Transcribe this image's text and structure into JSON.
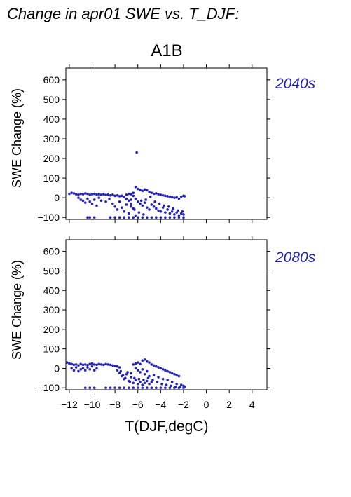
{
  "figure": {
    "title": "Change in apr01 SWE vs. T_DJF:",
    "scenario": "A1B",
    "ylabel": "SWE Change (%)",
    "xlabel": "T(DJF,degC)",
    "marker_color": "#2424b4",
    "period_color": "#2424b4"
  },
  "chart_data": [
    {
      "type": "scatter",
      "panel": "2040s",
      "title": "",
      "xlabel": "T(DJF,degC)",
      "ylabel": "SWE Change (%)",
      "xlim": [
        -12.3,
        5.3
      ],
      "ylim": [
        -110,
        660
      ],
      "yticks": [
        -100,
        0,
        100,
        200,
        300,
        400,
        500,
        600
      ],
      "xticks": [
        -12,
        -10,
        -8,
        -6,
        -4,
        -2,
        0,
        2,
        4
      ],
      "grid": false,
      "series": [
        {
          "points": [
            [
              -12.0,
              20
            ],
            [
              -11.8,
              25
            ],
            [
              -11.6,
              22
            ],
            [
              -11.4,
              18
            ],
            [
              -11.2,
              15
            ],
            [
              -11.0,
              20
            ],
            [
              -10.8,
              18
            ],
            [
              -10.6,
              22
            ],
            [
              -10.4,
              20
            ],
            [
              -10.2,
              15
            ],
            [
              -10.0,
              18
            ],
            [
              -9.8,
              20
            ],
            [
              -9.6,
              16
            ],
            [
              -9.4,
              18
            ],
            [
              -9.2,
              15
            ],
            [
              -9.0,
              18
            ],
            [
              -8.8,
              14
            ],
            [
              -8.6,
              16
            ],
            [
              -8.4,
              12
            ],
            [
              -8.2,
              15
            ],
            [
              -8.0,
              10
            ],
            [
              -7.8,
              12
            ],
            [
              -7.6,
              8
            ],
            [
              -7.4,
              10
            ],
            [
              -11.2,
              0
            ],
            [
              -11.0,
              -10
            ],
            [
              -10.8,
              -15
            ],
            [
              -10.6,
              -25
            ],
            [
              -10.4,
              -5
            ],
            [
              -10.2,
              -20
            ],
            [
              -10.0,
              -30
            ],
            [
              -9.8,
              -10
            ],
            [
              -9.6,
              -40
            ],
            [
              -9.4,
              0
            ],
            [
              -9.2,
              -15
            ],
            [
              -8.8,
              -20
            ],
            [
              -8.5,
              -5
            ],
            [
              -8.2,
              -30
            ],
            [
              -8.0,
              -45
            ],
            [
              -7.8,
              -60
            ],
            [
              -7.6,
              -20
            ],
            [
              -7.4,
              -50
            ],
            [
              -7.2,
              -70
            ],
            [
              -7.0,
              -35
            ],
            [
              -6.8,
              -80
            ],
            [
              -6.6,
              -10
            ],
            [
              -6.4,
              -55
            ],
            [
              -6.2,
              -90
            ],
            [
              -10.4,
              -100
            ],
            [
              -10.2,
              -100
            ],
            [
              -9.8,
              -100
            ],
            [
              -8.4,
              -100
            ],
            [
              -8.0,
              -100
            ],
            [
              -7.6,
              -100
            ],
            [
              -7.2,
              -100
            ],
            [
              -6.8,
              -100
            ],
            [
              -6.4,
              -100
            ],
            [
              -6.0,
              -100
            ],
            [
              -5.6,
              -100
            ],
            [
              -5.2,
              -100
            ],
            [
              -4.8,
              -100
            ],
            [
              -4.4,
              -100
            ],
            [
              -4.0,
              -100
            ],
            [
              -3.6,
              -100
            ],
            [
              -3.2,
              -100
            ],
            [
              -2.8,
              -100
            ],
            [
              -2.4,
              -100
            ],
            [
              -2.0,
              -100
            ],
            [
              -6.1,
              230
            ],
            [
              -6.2,
              55
            ],
            [
              -6.0,
              45
            ],
            [
              -5.8,
              40
            ],
            [
              -5.6,
              35
            ],
            [
              -5.4,
              42
            ],
            [
              -5.2,
              38
            ],
            [
              -5.0,
              30
            ],
            [
              -4.8,
              25
            ],
            [
              -4.6,
              20
            ],
            [
              -4.4,
              22
            ],
            [
              -4.2,
              18
            ],
            [
              -4.0,
              15
            ],
            [
              -3.8,
              12
            ],
            [
              -3.6,
              10
            ],
            [
              -3.4,
              8
            ],
            [
              -3.2,
              5
            ],
            [
              -3.0,
              3
            ],
            [
              -2.8,
              0
            ],
            [
              -2.6,
              2
            ],
            [
              -2.4,
              -5
            ],
            [
              -2.2,
              5
            ],
            [
              -2.0,
              10
            ],
            [
              -1.9,
              8
            ],
            [
              -6.4,
              10
            ],
            [
              -6.2,
              -5
            ],
            [
              -6.0,
              -20
            ],
            [
              -5.8,
              -30
            ],
            [
              -5.6,
              -40
            ],
            [
              -5.4,
              -25
            ],
            [
              -5.2,
              -50
            ],
            [
              -5.0,
              -60
            ],
            [
              -4.8,
              -35
            ],
            [
              -4.6,
              -45
            ],
            [
              -4.4,
              -55
            ],
            [
              -4.2,
              -65
            ],
            [
              -4.0,
              -70
            ],
            [
              -3.8,
              -50
            ],
            [
              -3.6,
              -75
            ],
            [
              -3.4,
              -60
            ],
            [
              -3.2,
              -80
            ],
            [
              -3.0,
              -70
            ],
            [
              -2.8,
              -85
            ],
            [
              -2.6,
              -75
            ],
            [
              -2.4,
              -90
            ],
            [
              -2.2,
              -80
            ],
            [
              -2.0,
              -85
            ],
            [
              -6.6,
              -30
            ],
            [
              -6.3,
              -60
            ],
            [
              -5.9,
              -75
            ],
            [
              -5.5,
              -85
            ],
            [
              -5.7,
              -15
            ],
            [
              -5.3,
              -10
            ],
            [
              -4.9,
              5
            ],
            [
              -4.5,
              -20
            ],
            [
              -4.1,
              -30
            ],
            [
              -3.7,
              -40
            ],
            [
              -3.3,
              -45
            ],
            [
              -2.9,
              -55
            ],
            [
              -2.5,
              -65
            ],
            [
              -2.1,
              -70
            ],
            [
              -7.0,
              15
            ],
            [
              -6.8,
              20
            ],
            [
              -6.6,
              18
            ],
            [
              -6.4,
              25
            ],
            [
              -7.2,
              5
            ],
            [
              -7.0,
              -5
            ],
            [
              -6.8,
              -15
            ],
            [
              -6.6,
              -45
            ]
          ]
        }
      ]
    },
    {
      "type": "scatter",
      "panel": "2080s",
      "title": "",
      "xlabel": "T(DJF,degC)",
      "ylabel": "SWE Change (%)",
      "xlim": [
        -12.3,
        5.3
      ],
      "ylim": [
        -110,
        660
      ],
      "yticks": [
        -100,
        0,
        100,
        200,
        300,
        400,
        500,
        600
      ],
      "xticks": [
        -12,
        -10,
        -8,
        -6,
        -4,
        -2,
        0,
        2,
        4
      ],
      "grid": false,
      "series": [
        {
          "points": [
            [
              -12.2,
              30
            ],
            [
              -12.0,
              25
            ],
            [
              -11.8,
              22
            ],
            [
              -11.6,
              18
            ],
            [
              -11.4,
              20
            ],
            [
              -11.2,
              15
            ],
            [
              -11.0,
              22
            ],
            [
              -10.8,
              18
            ],
            [
              -10.6,
              20
            ],
            [
              -10.4,
              16
            ],
            [
              -10.2,
              22
            ],
            [
              -10.0,
              25
            ],
            [
              -9.8,
              20
            ],
            [
              -9.6,
              18
            ],
            [
              -9.4,
              22
            ],
            [
              -9.2,
              20
            ],
            [
              -9.0,
              18
            ],
            [
              -8.8,
              22
            ],
            [
              -8.6,
              20
            ],
            [
              -8.4,
              18
            ],
            [
              -8.2,
              15
            ],
            [
              -8.0,
              12
            ],
            [
              -7.8,
              10
            ],
            [
              -7.6,
              5
            ],
            [
              -11.8,
              0
            ],
            [
              -11.6,
              -10
            ],
            [
              -11.4,
              5
            ],
            [
              -11.2,
              -15
            ],
            [
              -11.0,
              -5
            ],
            [
              -10.8,
              0
            ],
            [
              -10.6,
              -10
            ],
            [
              -10.4,
              5
            ],
            [
              -10.2,
              -5
            ],
            [
              -10.0,
              10
            ],
            [
              -9.8,
              -10
            ],
            [
              -9.6,
              0
            ],
            [
              -7.8,
              -10
            ],
            [
              -7.6,
              -25
            ],
            [
              -7.4,
              -40
            ],
            [
              -7.2,
              -55
            ],
            [
              -7.0,
              -30
            ],
            [
              -6.8,
              -65
            ],
            [
              -6.6,
              -45
            ],
            [
              -6.4,
              -75
            ],
            [
              -6.2,
              -60
            ],
            [
              -6.0,
              -80
            ],
            [
              -5.8,
              -70
            ],
            [
              -5.6,
              -85
            ],
            [
              -5.4,
              -75
            ],
            [
              -5.2,
              -65
            ],
            [
              -5.0,
              -80
            ],
            [
              -4.8,
              -70
            ],
            [
              -7.5,
              -15
            ],
            [
              -7.3,
              -35
            ],
            [
              -7.1,
              -50
            ],
            [
              -6.9,
              -20
            ],
            [
              -6.7,
              -70
            ],
            [
              -10.6,
              -100
            ],
            [
              -10.2,
              -100
            ],
            [
              -9.8,
              -100
            ],
            [
              -8.8,
              -100
            ],
            [
              -8.4,
              -100
            ],
            [
              -8.0,
              -100
            ],
            [
              -7.6,
              -100
            ],
            [
              -7.2,
              -100
            ],
            [
              -6.8,
              -100
            ],
            [
              -6.4,
              -100
            ],
            [
              -6.0,
              -100
            ],
            [
              -5.6,
              -100
            ],
            [
              -5.2,
              -100
            ],
            [
              -4.8,
              -100
            ],
            [
              -4.4,
              -100
            ],
            [
              -4.0,
              -100
            ],
            [
              -3.6,
              -100
            ],
            [
              -3.2,
              -100
            ],
            [
              -2.8,
              -100
            ],
            [
              -2.4,
              -100
            ],
            [
              -2.0,
              -100
            ],
            [
              -1.9,
              -95
            ],
            [
              -6.4,
              20
            ],
            [
              -6.2,
              25
            ],
            [
              -6.0,
              30
            ],
            [
              -5.8,
              22
            ],
            [
              -5.6,
              40
            ],
            [
              -5.4,
              45
            ],
            [
              -5.2,
              35
            ],
            [
              -5.0,
              30
            ],
            [
              -4.8,
              20
            ],
            [
              -4.6,
              15
            ],
            [
              -4.4,
              10
            ],
            [
              -4.2,
              5
            ],
            [
              -4.0,
              0
            ],
            [
              -3.8,
              -5
            ],
            [
              -3.6,
              -10
            ],
            [
              -3.4,
              -15
            ],
            [
              -3.2,
              -20
            ],
            [
              -3.0,
              -25
            ],
            [
              -2.8,
              -30
            ],
            [
              -2.6,
              -35
            ],
            [
              -2.4,
              -40
            ],
            [
              -6.2,
              0
            ],
            [
              -6.0,
              -10
            ],
            [
              -5.8,
              -20
            ],
            [
              -5.6,
              -5
            ],
            [
              -5.4,
              -30
            ],
            [
              -5.2,
              -15
            ],
            [
              -5.0,
              -40
            ],
            [
              -4.6,
              -35
            ],
            [
              -4.2,
              -45
            ],
            [
              -3.8,
              -55
            ],
            [
              -3.4,
              -60
            ],
            [
              -3.0,
              -70
            ],
            [
              -2.6,
              -80
            ],
            [
              -2.2,
              -85
            ],
            [
              -2.0,
              -90
            ],
            [
              -6.6,
              -25
            ],
            [
              -6.3,
              -50
            ],
            [
              -5.9,
              -55
            ],
            [
              -5.5,
              -60
            ],
            [
              -5.1,
              -50
            ],
            [
              -4.7,
              -60
            ],
            [
              -4.3,
              -70
            ],
            [
              -3.9,
              -80
            ],
            [
              -3.5,
              -85
            ],
            [
              -3.1,
              -90
            ],
            [
              -2.7,
              -95
            ],
            [
              -2.3,
              -95
            ]
          ]
        }
      ]
    }
  ]
}
